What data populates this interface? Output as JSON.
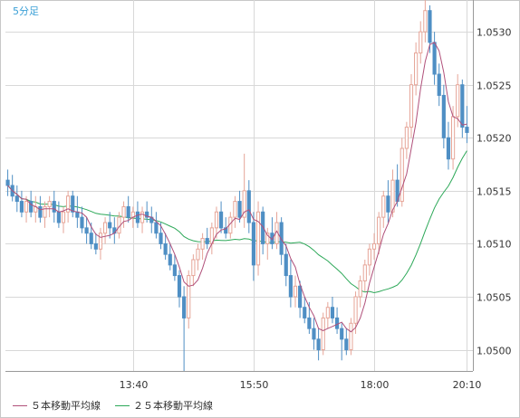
{
  "timeframe_label": "5分足",
  "colors": {
    "bull_candle": "#e6a598",
    "bear_candle": "#4f8fc4",
    "ma5": "#b0507a",
    "ma25": "#2ca858",
    "grid": "#d8d8d8",
    "text": "#333333"
  },
  "chart_data": {
    "type": "candlestick",
    "y_ticks": [
      "1.0500",
      "1.0505",
      "1.0510",
      "1.0515",
      "1.0520",
      "1.0525",
      "1.0530"
    ],
    "x_ticks": [
      "13:40",
      "15:50",
      "18:00",
      "20:10"
    ],
    "ylim": [
      1.0498,
      1.0533
    ],
    "grid": true,
    "legend_position": "bottom-left",
    "legend": [
      {
        "label": "５本移動平均線",
        "color": "#b0507a"
      },
      {
        "label": "２５本移動平均線",
        "color": "#2ca858"
      }
    ],
    "candles": [
      [
        1.0516,
        1.0517,
        1.05145,
        1.05155
      ],
      [
        1.05155,
        1.05165,
        1.0514,
        1.05145
      ],
      [
        1.05145,
        1.05155,
        1.0513,
        1.0514
      ],
      [
        1.0514,
        1.0515,
        1.05125,
        1.0513
      ],
      [
        1.0513,
        1.05145,
        1.0512,
        1.0514
      ],
      [
        1.0514,
        1.0515,
        1.05125,
        1.0513
      ],
      [
        1.0513,
        1.05145,
        1.0512,
        1.05135
      ],
      [
        1.05135,
        1.05145,
        1.0512,
        1.05125
      ],
      [
        1.05125,
        1.0514,
        1.05115,
        1.05135
      ],
      [
        1.05135,
        1.05145,
        1.05125,
        1.0514
      ],
      [
        1.0514,
        1.0515,
        1.0512,
        1.0513
      ],
      [
        1.0513,
        1.0514,
        1.05115,
        1.0512
      ],
      [
        1.0512,
        1.05135,
        1.0511,
        1.0513
      ],
      [
        1.0513,
        1.0515,
        1.0512,
        1.05145
      ],
      [
        1.05145,
        1.0515,
        1.05125,
        1.0513
      ],
      [
        1.0513,
        1.05145,
        1.05115,
        1.05125
      ],
      [
        1.05125,
        1.05135,
        1.0511,
        1.05115
      ],
      [
        1.05115,
        1.05125,
        1.051,
        1.0511
      ],
      [
        1.0511,
        1.0512,
        1.05095,
        1.051
      ],
      [
        1.051,
        1.0511,
        1.0509,
        1.05095
      ],
      [
        1.05095,
        1.05115,
        1.05085,
        1.0511
      ],
      [
        1.0511,
        1.05125,
        1.051,
        1.0512
      ],
      [
        1.0512,
        1.0513,
        1.05105,
        1.05115
      ],
      [
        1.05115,
        1.05125,
        1.051,
        1.0511
      ],
      [
        1.0511,
        1.0513,
        1.05105,
        1.05125
      ],
      [
        1.05125,
        1.0514,
        1.05115,
        1.05135
      ],
      [
        1.05135,
        1.05145,
        1.0512,
        1.05125
      ],
      [
        1.05125,
        1.05135,
        1.05115,
        1.0513
      ],
      [
        1.0513,
        1.0514,
        1.05115,
        1.0512
      ],
      [
        1.0512,
        1.05135,
        1.0511,
        1.0513
      ],
      [
        1.0513,
        1.0514,
        1.0512,
        1.05125
      ],
      [
        1.05125,
        1.05135,
        1.0511,
        1.0512
      ],
      [
        1.0512,
        1.0513,
        1.05105,
        1.0511
      ],
      [
        1.0511,
        1.0512,
        1.05095,
        1.051
      ],
      [
        1.051,
        1.0511,
        1.05085,
        1.0509
      ],
      [
        1.0509,
        1.051,
        1.05075,
        1.0508
      ],
      [
        1.0508,
        1.0509,
        1.05065,
        1.0507
      ],
      [
        1.0507,
        1.05075,
        1.0504,
        1.0505
      ],
      [
        1.0505,
        1.0506,
        1.0498,
        1.0503
      ],
      [
        1.0503,
        1.05075,
        1.0502,
        1.0507
      ],
      [
        1.0507,
        1.0509,
        1.0506,
        1.05085
      ],
      [
        1.05085,
        1.051,
        1.05075,
        1.05095
      ],
      [
        1.05095,
        1.0511,
        1.05085,
        1.05105
      ],
      [
        1.05105,
        1.05115,
        1.05095,
        1.051
      ],
      [
        1.051,
        1.0512,
        1.0509,
        1.05115
      ],
      [
        1.05115,
        1.05135,
        1.05105,
        1.0513
      ],
      [
        1.0513,
        1.0514,
        1.0511,
        1.05115
      ],
      [
        1.05115,
        1.05125,
        1.05105,
        1.0511
      ],
      [
        1.0511,
        1.0513,
        1.05105,
        1.05125
      ],
      [
        1.05125,
        1.05145,
        1.05115,
        1.0514
      ],
      [
        1.0514,
        1.0515,
        1.0512,
        1.05125
      ],
      [
        1.05125,
        1.05185,
        1.05115,
        1.0515
      ],
      [
        1.0515,
        1.0516,
        1.0511,
        1.0512
      ],
      [
        1.0512,
        1.0513,
        1.05065,
        1.0508
      ],
      [
        1.0508,
        1.0514,
        1.0507,
        1.0513
      ],
      [
        1.0513,
        1.05135,
        1.0509,
        1.051
      ],
      [
        1.051,
        1.05115,
        1.05085,
        1.0511
      ],
      [
        1.0511,
        1.05125,
        1.05095,
        1.051
      ],
      [
        1.051,
        1.0513,
        1.05095,
        1.0512
      ],
      [
        1.0512,
        1.05125,
        1.0508,
        1.0509
      ],
      [
        1.0509,
        1.051,
        1.0506,
        1.0507
      ],
      [
        1.0507,
        1.05085,
        1.0504,
        1.0505
      ],
      [
        1.0505,
        1.0507,
        1.0504,
        1.0506
      ],
      [
        1.0506,
        1.05065,
        1.0503,
        1.0504
      ],
      [
        1.0504,
        1.0505,
        1.05025,
        1.0503
      ],
      [
        1.0503,
        1.05045,
        1.05015,
        1.0502
      ],
      [
        1.0502,
        1.0503,
        1.05,
        1.0501
      ],
      [
        1.0501,
        1.0502,
        1.0499,
        1.05
      ],
      [
        1.05,
        1.05035,
        1.04995,
        1.0503
      ],
      [
        1.0503,
        1.05045,
        1.0502,
        1.0504
      ],
      [
        1.0504,
        1.0505,
        1.05025,
        1.0503
      ],
      [
        1.0503,
        1.0504,
        1.05015,
        1.0502
      ],
      [
        1.0502,
        1.05025,
        1.0499,
        1.0501
      ],
      [
        1.0501,
        1.0502,
        1.04995,
        1.05
      ],
      [
        1.05,
        1.0503,
        1.04995,
        1.05025
      ],
      [
        1.05025,
        1.05055,
        1.05015,
        1.0505
      ],
      [
        1.0505,
        1.0507,
        1.0504,
        1.05065
      ],
      [
        1.05065,
        1.05085,
        1.05055,
        1.0508
      ],
      [
        1.0508,
        1.051,
        1.0507,
        1.05095
      ],
      [
        1.05095,
        1.0511,
        1.05085,
        1.051
      ],
      [
        1.051,
        1.0513,
        1.0509,
        1.05125
      ],
      [
        1.05125,
        1.0515,
        1.05115,
        1.05145
      ],
      [
        1.05145,
        1.0516,
        1.0512,
        1.0513
      ],
      [
        1.0513,
        1.0517,
        1.05125,
        1.0516
      ],
      [
        1.0516,
        1.05175,
        1.05135,
        1.0514
      ],
      [
        1.0514,
        1.052,
        1.05135,
        1.0519
      ],
      [
        1.0519,
        1.05215,
        1.0518,
        1.0521
      ],
      [
        1.0521,
        1.0526,
        1.052,
        1.0525
      ],
      [
        1.0525,
        1.0529,
        1.0524,
        1.0528
      ],
      [
        1.0528,
        1.0531,
        1.0527,
        1.053
      ],
      [
        1.053,
        1.0533,
        1.0529,
        1.0532
      ],
      [
        1.0532,
        1.05325,
        1.0528,
        1.0529
      ],
      [
        1.0529,
        1.053,
        1.0525,
        1.0526
      ],
      [
        1.0526,
        1.0527,
        1.0523,
        1.0524
      ],
      [
        1.0524,
        1.0525,
        1.0519,
        1.052
      ],
      [
        1.052,
        1.05215,
        1.0517,
        1.0518
      ],
      [
        1.0518,
        1.0523,
        1.0517,
        1.0522
      ],
      [
        1.0522,
        1.0526,
        1.0521,
        1.0525
      ],
      [
        1.0525,
        1.05255,
        1.052,
        1.0521
      ],
      [
        1.0521,
        1.0523,
        1.05195,
        1.05205
      ]
    ]
  }
}
